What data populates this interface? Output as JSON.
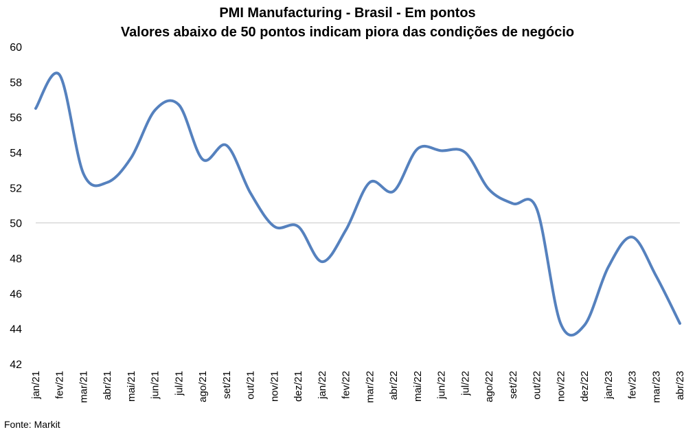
{
  "chart_data": {
    "type": "line",
    "title": "PMI Manufacturing - Brasil - Em pontos",
    "subtitle": "Valores abaixo de 50 pontos indicam piora das condições de negócio",
    "xlabel": "",
    "ylabel": "",
    "categories": [
      "jan/21",
      "fev/21",
      "mar/21",
      "abr/21",
      "mai/21",
      "jun/21",
      "jul/21",
      "ago/21",
      "set/21",
      "out/21",
      "nov/21",
      "dez/21",
      "jan/22",
      "fev/22",
      "mar/22",
      "abr/22",
      "mai/22",
      "jun/22",
      "jul/22",
      "ago/22",
      "set/22",
      "out/22",
      "nov/22",
      "dez/22",
      "jan/23",
      "fev/23",
      "mar/23",
      "abr/23"
    ],
    "series": [
      {
        "values": [
          56.5,
          58.4,
          52.8,
          52.3,
          53.7,
          56.4,
          56.7,
          53.6,
          54.4,
          51.7,
          49.8,
          49.8,
          47.8,
          49.6,
          52.3,
          51.8,
          54.2,
          54.1,
          54.0,
          51.9,
          51.1,
          50.8,
          44.3,
          44.2,
          47.5,
          49.2,
          47.0,
          44.3
        ],
        "color": "#5581be"
      }
    ],
    "ylim": [
      42,
      60
    ],
    "yticks": [
      42,
      44,
      46,
      48,
      50,
      52,
      54,
      56,
      58,
      60
    ],
    "reference_line": 50,
    "grid": false,
    "legend": "none",
    "source": "Fonte: Markit"
  }
}
